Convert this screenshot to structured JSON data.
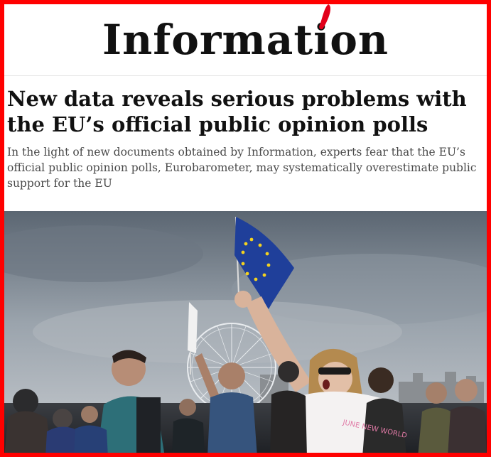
{
  "masthead": {
    "logo_text": "Information",
    "accent_color": "#e2001a"
  },
  "article": {
    "headline": "New data reveals serious problems with the EU’s official public opinion polls",
    "standfirst": "In the light of new documents obtained by Information, experts fear that the EU’s official public opinion polls, Eurobarometer, may systematically overestimate public support for the EU"
  },
  "photo": {
    "placard_text": "JUNE NEW WORLD"
  },
  "colors": {
    "frame": "#ff0000",
    "headline": "#111111",
    "standfirst": "#4a4a4a",
    "eu_flag_blue": "#1f3f9a",
    "eu_flag_stars": "#f4d21f"
  }
}
